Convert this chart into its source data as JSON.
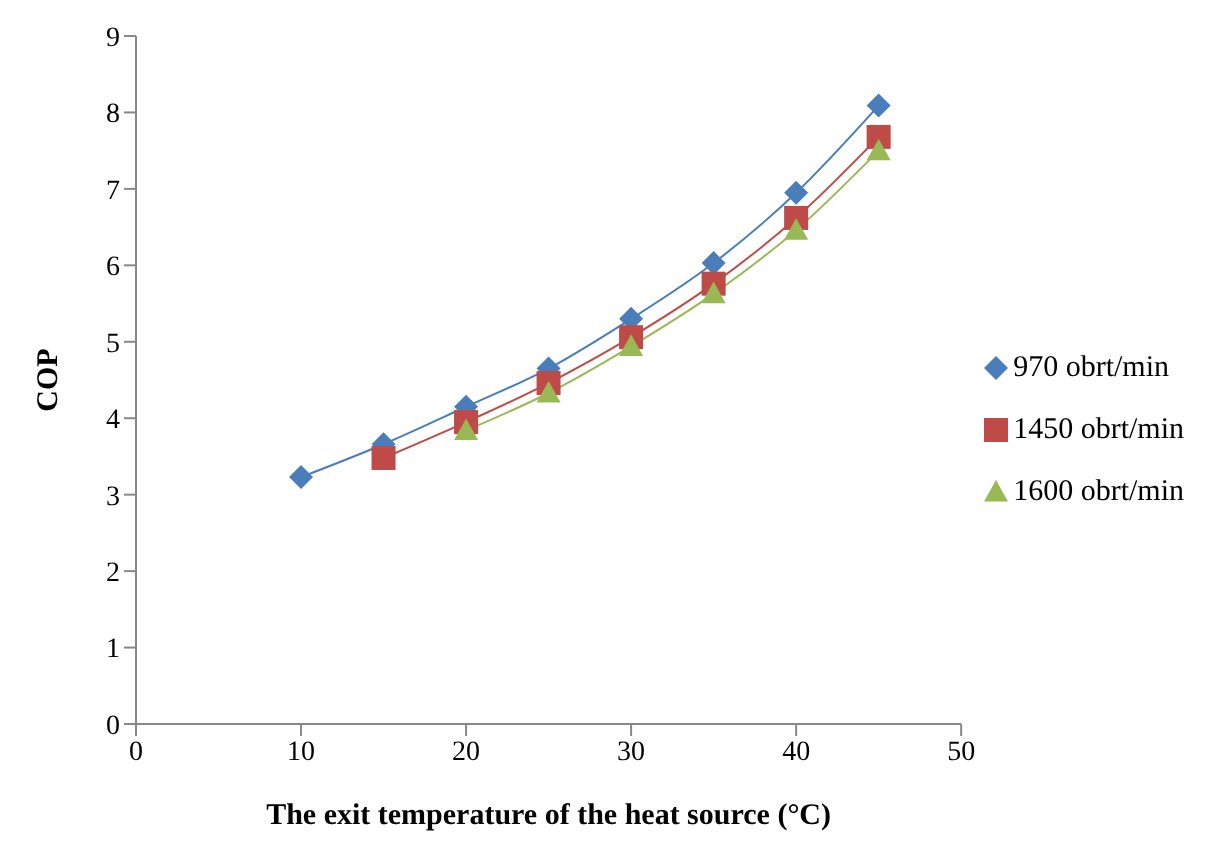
{
  "chart_data": {
    "type": "line",
    "xlabel": "The exit temperature of the heat source (°C)",
    "ylabel": "COP",
    "xlim": [
      0,
      50
    ],
    "xticks": [
      0,
      10,
      20,
      30,
      40,
      50
    ],
    "ylim": [
      0,
      9
    ],
    "yticks": [
      0,
      1,
      2,
      3,
      4,
      5,
      6,
      7,
      8,
      9
    ],
    "grid": false,
    "legend": "right",
    "line_style": "solid",
    "series": [
      {
        "name": "970 obrt/min",
        "color": "#4a7ebb",
        "marker": "diamond",
        "x": [
          10,
          15,
          20,
          25,
          30,
          35,
          40,
          45
        ],
        "values": [
          3.23,
          3.66,
          4.15,
          4.65,
          5.3,
          6.03,
          6.95,
          8.09
        ]
      },
      {
        "name": "1450 obrt/min",
        "color": "#be4b48",
        "marker": "square",
        "x": [
          15,
          20,
          25,
          30,
          35,
          40,
          45
        ],
        "values": [
          3.48,
          3.95,
          4.46,
          5.06,
          5.76,
          6.62,
          7.68
        ]
      },
      {
        "name": "1600 obrt/min",
        "color": "#98b954",
        "marker": "triangle",
        "x": [
          20,
          25,
          30,
          35,
          40,
          45
        ],
        "values": [
          3.84,
          4.33,
          4.94,
          5.63,
          6.46,
          7.5
        ]
      }
    ]
  }
}
